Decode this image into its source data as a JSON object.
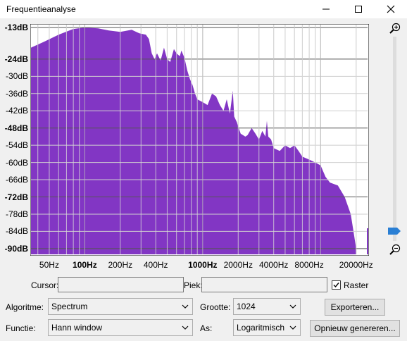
{
  "window": {
    "title": "Frequentieanalyse"
  },
  "titlebar_buttons": {
    "minimize": "—",
    "maximize": "☐",
    "close": "✕"
  },
  "chart_data": {
    "type": "area",
    "title": "",
    "xlabel": "",
    "ylabel": "",
    "x_scale": "log",
    "xlim": [
      35,
      25000
    ],
    "ylim": [
      -92,
      -12
    ],
    "grid": true,
    "fill_color": "#8236c4",
    "y_ticks": [
      {
        "label": "-13dB",
        "value": -13,
        "bold": true
      },
      {
        "label": "-24dB",
        "value": -24,
        "bold": true
      },
      {
        "label": "-30dB",
        "value": -30,
        "bold": false
      },
      {
        "label": "-36dB",
        "value": -36,
        "bold": false
      },
      {
        "label": "-42dB",
        "value": -42,
        "bold": false
      },
      {
        "label": "-48dB",
        "value": -48,
        "bold": true
      },
      {
        "label": "-54dB",
        "value": -54,
        "bold": false
      },
      {
        "label": "-60dB",
        "value": -60,
        "bold": false
      },
      {
        "label": "-66dB",
        "value": -66,
        "bold": false
      },
      {
        "label": "-72dB",
        "value": -72,
        "bold": true
      },
      {
        "label": "-78dB",
        "value": -78,
        "bold": false
      },
      {
        "label": "-84dB",
        "value": -84,
        "bold": false
      },
      {
        "label": "-90dB",
        "value": -90,
        "bold": true
      }
    ],
    "x_ticks": [
      {
        "label": "50Hz",
        "value": 50,
        "bold": false
      },
      {
        "label": "100Hz",
        "value": 100,
        "bold": true
      },
      {
        "label": "200Hz",
        "value": 200,
        "bold": false
      },
      {
        "label": "400Hz",
        "value": 400,
        "bold": false
      },
      {
        "label": "1000Hz",
        "value": 1000,
        "bold": true
      },
      {
        "label": "2000Hz",
        "value": 2000,
        "bold": false
      },
      {
        "label": "4000Hz",
        "value": 4000,
        "bold": false
      },
      {
        "label": "8000Hz",
        "value": 8000,
        "bold": false
      },
      {
        "label": "20000Hz",
        "value": 20000,
        "bold": false
      }
    ],
    "points": [
      [
        35,
        -20
      ],
      [
        45,
        -18
      ],
      [
        60,
        -15.5
      ],
      [
        80,
        -13.5
      ],
      [
        100,
        -13
      ],
      [
        130,
        -13.3
      ],
      [
        160,
        -14
      ],
      [
        200,
        -14.5
      ],
      [
        250,
        -13.8
      ],
      [
        290,
        -15
      ],
      [
        330,
        -15.5
      ],
      [
        350,
        -17
      ],
      [
        370,
        -22
      ],
      [
        390,
        -24
      ],
      [
        410,
        -22
      ],
      [
        440,
        -24.5
      ],
      [
        470,
        -20
      ],
      [
        500,
        -24
      ],
      [
        530,
        -25
      ],
      [
        570,
        -20.5
      ],
      [
        600,
        -22
      ],
      [
        640,
        -23
      ],
      [
        660,
        -21
      ],
      [
        700,
        -23.5
      ],
      [
        740,
        -28
      ],
      [
        780,
        -31
      ],
      [
        820,
        -33
      ],
      [
        860,
        -36
      ],
      [
        900,
        -38
      ],
      [
        1000,
        -39
      ],
      [
        1100,
        -40
      ],
      [
        1200,
        -36
      ],
      [
        1300,
        -37
      ],
      [
        1400,
        -40
      ],
      [
        1500,
        -42
      ],
      [
        1600,
        -38
      ],
      [
        1700,
        -43
      ],
      [
        1800,
        -35
      ],
      [
        1850,
        -44
      ],
      [
        1950,
        -46
      ],
      [
        2000,
        -47.5
      ],
      [
        2100,
        -50
      ],
      [
        2300,
        -51
      ],
      [
        2400,
        -50.5
      ],
      [
        2600,
        -48
      ],
      [
        2800,
        -50
      ],
      [
        3000,
        -52
      ],
      [
        3200,
        -49
      ],
      [
        3400,
        -51
      ],
      [
        3500,
        -45.5
      ],
      [
        3600,
        -51
      ],
      [
        3800,
        -52
      ],
      [
        4000,
        -55
      ],
      [
        4500,
        -56
      ],
      [
        5000,
        -54
      ],
      [
        5500,
        -55
      ],
      [
        6000,
        -54
      ],
      [
        6500,
        -56
      ],
      [
        7000,
        -58
      ],
      [
        8000,
        -59
      ],
      [
        9000,
        -60
      ],
      [
        10000,
        -61
      ],
      [
        11000,
        -65
      ],
      [
        12000,
        -67
      ],
      [
        14000,
        -68
      ],
      [
        16000,
        -72
      ],
      [
        18000,
        -78
      ],
      [
        19000,
        -84
      ],
      [
        20000,
        -90
      ]
    ]
  },
  "form": {
    "cursor_label": "Cursor:",
    "cursor_value": "",
    "peak_label": "Piek:",
    "peak_value": "",
    "grid_label": "Raster",
    "grid_checked": true,
    "algorithm_label": "Algoritme:",
    "algorithm_value": "Spectrum",
    "size_label": "Grootte:",
    "size_value": "1024",
    "export_button": "Exporteren...",
    "function_label": "Functie:",
    "function_value": "Hann window",
    "axis_label": "As:",
    "axis_value": "Logaritmisch",
    "regenerate_button": "Opnieuw genereren..."
  },
  "icons": {
    "zoom_in": "zoom-in-icon",
    "zoom_out": "zoom-out-icon",
    "chevron": "chevron-down-icon"
  },
  "colors": {
    "spectrum": "#8236c4",
    "thumb": "#2a7fd4"
  }
}
